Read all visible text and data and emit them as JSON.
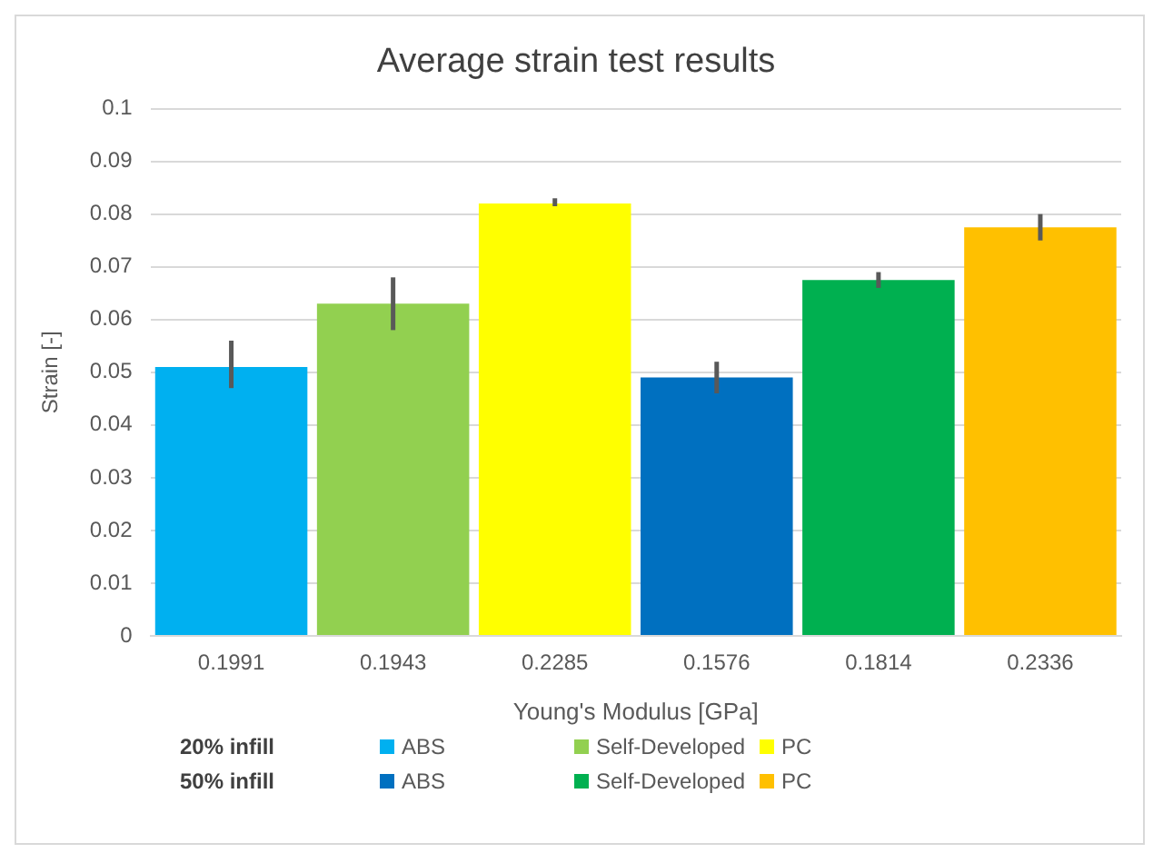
{
  "chart_data": {
    "type": "bar",
    "title": "Average strain test results",
    "xlabel": "Young's Modulus [GPa]",
    "ylabel": "Strain [-]",
    "categories": [
      "0.1991",
      "0.1943",
      "0.2285",
      "0.1576",
      "0.1814",
      "0.2336"
    ],
    "series": [
      {
        "name": "ABS",
        "color": "#00b0f0",
        "values": [
          0.051,
          null,
          null,
          null,
          null,
          null
        ],
        "errors": [
          [
            0.047,
            0.056
          ],
          null,
          null,
          null,
          null,
          null
        ]
      },
      {
        "name": "Self-Developed",
        "color": "#92d050",
        "values": [
          null,
          0.063,
          null,
          null,
          null,
          null
        ],
        "errors": [
          null,
          [
            0.058,
            0.068
          ],
          null,
          null,
          null,
          null
        ]
      },
      {
        "name": "PC",
        "color": "#ffff00",
        "values": [
          null,
          null,
          0.082,
          null,
          null,
          null
        ],
        "errors": [
          null,
          null,
          [
            0.0815,
            0.083
          ],
          null,
          null,
          null
        ]
      },
      {
        "name": "ABS",
        "color": "#0070c0",
        "values": [
          null,
          null,
          null,
          0.049,
          null,
          null
        ],
        "errors": [
          null,
          null,
          null,
          [
            0.046,
            0.052
          ],
          null,
          null
        ]
      },
      {
        "name": "Self-Developed",
        "color": "#00b050",
        "values": [
          null,
          null,
          null,
          null,
          0.0675,
          null
        ],
        "errors": [
          null,
          null,
          null,
          null,
          [
            0.066,
            0.069
          ],
          null
        ]
      },
      {
        "name": "PC",
        "color": "#ffc000",
        "values": [
          null,
          null,
          null,
          null,
          null,
          0.0775
        ],
        "errors": [
          null,
          null,
          null,
          null,
          null,
          [
            0.075,
            0.08
          ]
        ]
      }
    ],
    "annotations": [
      "20% infill",
      "50% infill"
    ],
    "ylim": [
      0,
      0.1
    ],
    "yticks": [
      0,
      0.01,
      0.02,
      0.03,
      0.04,
      0.05,
      0.06,
      0.07,
      0.08,
      0.09,
      0.1
    ],
    "grid": "y",
    "legend": "bottom"
  }
}
